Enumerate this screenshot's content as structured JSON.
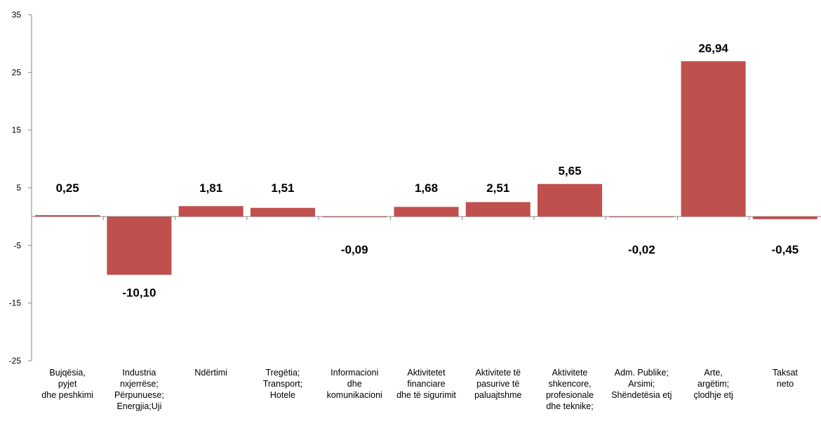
{
  "chart_data": {
    "type": "bar",
    "categories": [
      [
        "Bujqësia,",
        "pyjet",
        "dhe peshkimi"
      ],
      [
        "Industria",
        "nxjerrëse;",
        "Përpunuese;",
        "Energjia;Uji"
      ],
      [
        "Ndërtimi"
      ],
      [
        "Tregëtia;",
        "Transport;",
        "Hotele"
      ],
      [
        "Informacioni",
        "dhe",
        "komunikacioni"
      ],
      [
        "Aktivitetet",
        "financiare",
        "dhe të sigurimit"
      ],
      [
        "Aktivitete të",
        "pasurive të",
        "paluajtshme"
      ],
      [
        "Aktivitete",
        "shkencore,",
        "profesionale",
        "dhe teknike;"
      ],
      [
        "Adm. Publike;",
        "Arsimi;",
        "Shëndetësia etj"
      ],
      [
        "Arte,",
        "argëtim;",
        "çlodhje etj"
      ],
      [
        "Taksat",
        "neto"
      ]
    ],
    "values": [
      0.25,
      -10.1,
      1.81,
      1.51,
      -0.09,
      1.68,
      2.51,
      5.65,
      -0.02,
      26.94,
      -0.45
    ],
    "value_labels": [
      "0,25",
      "-10,10",
      "1,81",
      "1,51",
      "-0,09",
      "1,68",
      "2,51",
      "5,65",
      "-0,02",
      "26,94",
      "-0,45"
    ],
    "yticks": [
      35,
      25,
      15,
      5,
      -5,
      -15,
      -25
    ],
    "ylim": [
      -25,
      35
    ],
    "bar_color": "#c0504d",
    "axis_color": "#868686",
    "grid": false,
    "legend": "none"
  }
}
